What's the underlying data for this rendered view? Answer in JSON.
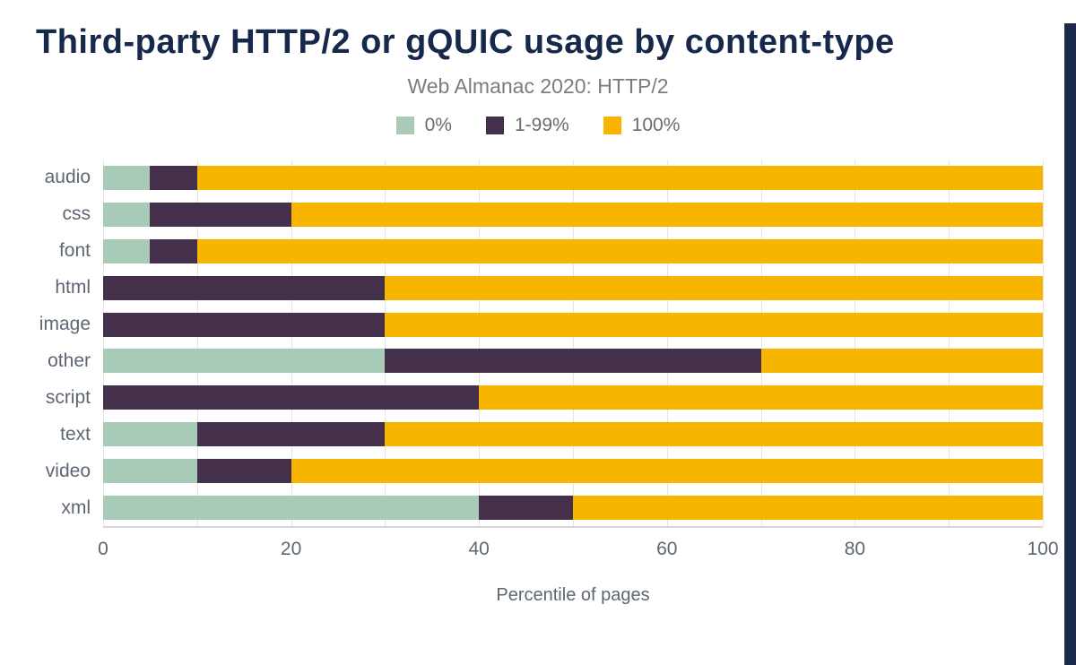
{
  "title": "Third-party HTTP/2 or gQUIC usage by content-type",
  "subtitle": "Web Almanac 2020: HTTP/2",
  "chart_data": {
    "type": "bar",
    "orientation": "horizontal",
    "stacked": true,
    "title": "Third-party HTTP/2 or gQUIC usage by content-type",
    "subtitle": "Web Almanac 2020: HTTP/2",
    "xlabel": "Percentile of pages",
    "xlim": [
      0,
      100
    ],
    "xticks": [
      0,
      20,
      40,
      60,
      80,
      100
    ],
    "grid_step": 10,
    "legend_position": "top",
    "categories": [
      "audio",
      "css",
      "font",
      "html",
      "image",
      "other",
      "script",
      "text",
      "video",
      "xml"
    ],
    "series": [
      {
        "name": "0%",
        "color": "#a8cbb8",
        "values": [
          5,
          5,
          5,
          0,
          0,
          30,
          0,
          10,
          10,
          40
        ]
      },
      {
        "name": "1-99%",
        "color": "#44304a",
        "values": [
          5,
          15,
          5,
          30,
          30,
          40,
          40,
          20,
          10,
          10
        ]
      },
      {
        "name": "100%",
        "color": "#f7b500",
        "values": [
          90,
          80,
          90,
          70,
          70,
          30,
          60,
          70,
          80,
          50
        ]
      }
    ]
  },
  "colors": {
    "frame_navy": "#1b2a49",
    "title_navy": "#16294b",
    "axis_text": "#5c6773",
    "gridline": "#e5e5e5"
  }
}
